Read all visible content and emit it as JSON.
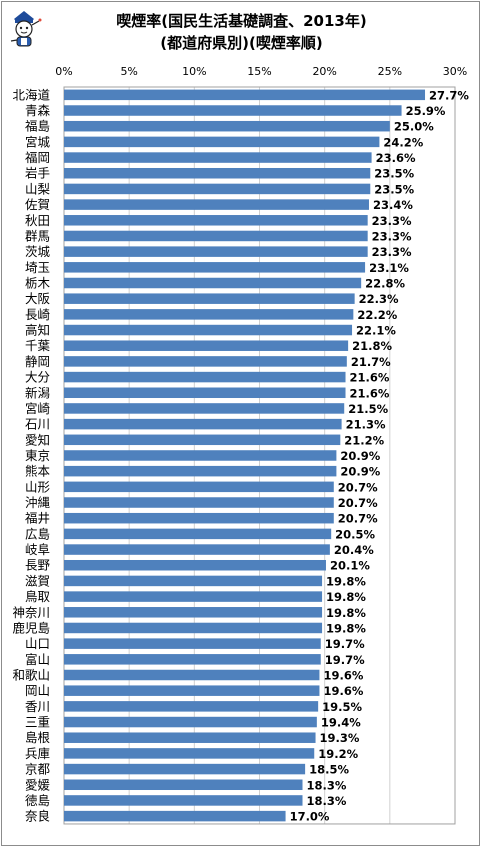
{
  "chart_data": {
    "type": "bar",
    "orientation": "horizontal",
    "title": "喫煙率(国民生活基礎調査、2013年)",
    "subtitle": "(都道府県別)(喫煙率順)",
    "xlim": [
      0,
      30
    ],
    "ticks": [
      "0%",
      "5%",
      "10%",
      "15%",
      "20%",
      "25%",
      "30%"
    ],
    "tick_values": [
      0,
      5,
      10,
      15,
      20,
      25,
      30
    ],
    "grid": true,
    "legend": "none",
    "bar_color": "#4f81bd",
    "categories": [
      "北海道",
      "青森",
      "福島",
      "宮城",
      "福岡",
      "岩手",
      "山梨",
      "佐賀",
      "秋田",
      "群馬",
      "茨城",
      "埼玉",
      "栃木",
      "大阪",
      "長崎",
      "高知",
      "千葉",
      "静岡",
      "大分",
      "新潟",
      "宮崎",
      "石川",
      "愛知",
      "東京",
      "熊本",
      "山形",
      "沖縄",
      "福井",
      "広島",
      "岐阜",
      "長野",
      "滋賀",
      "鳥取",
      "神奈川",
      "鹿児島",
      "山口",
      "富山",
      "和歌山",
      "岡山",
      "香川",
      "三重",
      "島根",
      "兵庫",
      "京都",
      "愛媛",
      "徳島",
      "奈良"
    ],
    "values": [
      27.7,
      25.9,
      25.0,
      24.2,
      23.6,
      23.5,
      23.5,
      23.4,
      23.3,
      23.3,
      23.3,
      23.1,
      22.8,
      22.3,
      22.2,
      22.1,
      21.8,
      21.7,
      21.6,
      21.6,
      21.5,
      21.3,
      21.2,
      20.9,
      20.9,
      20.7,
      20.7,
      20.7,
      20.5,
      20.4,
      20.1,
      19.8,
      19.8,
      19.8,
      19.8,
      19.7,
      19.7,
      19.6,
      19.6,
      19.5,
      19.4,
      19.3,
      19.2,
      18.5,
      18.3,
      18.3,
      17.0
    ],
    "value_labels": [
      "27.7%",
      "25.9%",
      "25.0%",
      "24.2%",
      "23.6%",
      "23.5%",
      "23.5%",
      "23.4%",
      "23.3%",
      "23.3%",
      "23.3%",
      "23.1%",
      "22.8%",
      "22.3%",
      "22.2%",
      "22.1%",
      "21.8%",
      "21.7%",
      "21.6%",
      "21.6%",
      "21.5%",
      "21.3%",
      "21.2%",
      "20.9%",
      "20.9%",
      "20.7%",
      "20.7%",
      "20.7%",
      "20.5%",
      "20.4%",
      "20.1%",
      "19.8%",
      "19.8%",
      "19.8%",
      "19.8%",
      "19.7%",
      "19.7%",
      "19.6%",
      "19.6%",
      "19.5%",
      "19.4%",
      "19.3%",
      "19.2%",
      "18.5%",
      "18.3%",
      "18.3%",
      "17.0%"
    ]
  }
}
